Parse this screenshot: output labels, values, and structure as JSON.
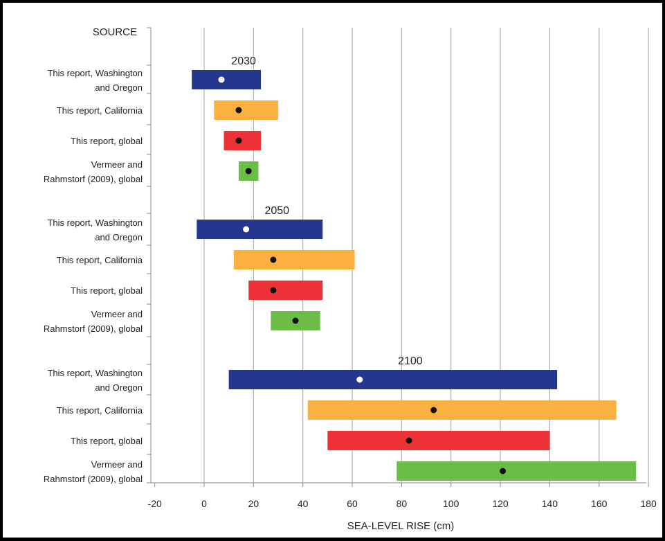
{
  "chart_data": {
    "type": "range-bar",
    "source_header": "SOURCE",
    "xlabel": "SEA-LEVEL RISE (cm)",
    "xlim": [
      -20,
      180
    ],
    "xticks": [
      "-20",
      "0",
      "20",
      "40",
      "60",
      "80",
      "100",
      "120",
      "140",
      "160",
      "180"
    ],
    "grid": "vertical",
    "colors": {
      "washington_oregon": "#25368f",
      "california": "#fbb040",
      "global": "#ec3237",
      "vermeer": "#6cbd45",
      "grid": "#a0a0a0"
    },
    "groups": [
      {
        "year": "2030",
        "rows": [
          {
            "label_lines": [
              "This report, Washington",
              "and Oregon"
            ],
            "series": "washington_oregon",
            "low": -5,
            "high": 23,
            "mid": 7,
            "marker": "white"
          },
          {
            "label_lines": [
              "This report, California"
            ],
            "series": "california",
            "low": 4,
            "high": 30,
            "mid": 14,
            "marker": "black"
          },
          {
            "label_lines": [
              "This report, global"
            ],
            "series": "global",
            "low": 8,
            "high": 23,
            "mid": 14,
            "marker": "black"
          },
          {
            "label_lines": [
              "Vermeer and",
              "Rahmstorf (2009), global"
            ],
            "series": "vermeer",
            "low": 14,
            "high": 22,
            "mid": 18,
            "marker": "black"
          }
        ]
      },
      {
        "year": "2050",
        "rows": [
          {
            "label_lines": [
              "This report, Washington",
              "and Oregon"
            ],
            "series": "washington_oregon",
            "low": -3,
            "high": 48,
            "mid": 17,
            "marker": "white"
          },
          {
            "label_lines": [
              "This report, California"
            ],
            "series": "california",
            "low": 12,
            "high": 61,
            "mid": 28,
            "marker": "black"
          },
          {
            "label_lines": [
              "This report, global"
            ],
            "series": "global",
            "low": 18,
            "high": 48,
            "mid": 28,
            "marker": "black"
          },
          {
            "label_lines": [
              "Vermeer and",
              "Rahmstorf (2009), global"
            ],
            "series": "vermeer",
            "low": 27,
            "high": 47,
            "mid": 37,
            "marker": "black"
          }
        ]
      },
      {
        "year": "2100",
        "rows": [
          {
            "label_lines": [
              "This report, Washington",
              "and Oregon"
            ],
            "series": "washington_oregon",
            "low": 10,
            "high": 143,
            "mid": 63,
            "marker": "white"
          },
          {
            "label_lines": [
              "This report, California"
            ],
            "series": "california",
            "low": 42,
            "high": 167,
            "mid": 93,
            "marker": "black"
          },
          {
            "label_lines": [
              "This report, global"
            ],
            "series": "global",
            "low": 50,
            "high": 140,
            "mid": 83,
            "marker": "black"
          },
          {
            "label_lines": [
              "Vermeer and",
              "Rahmstorf (2009), global"
            ],
            "series": "vermeer",
            "low": 78,
            "high": 175,
            "mid": 121,
            "marker": "black"
          }
        ]
      }
    ]
  }
}
